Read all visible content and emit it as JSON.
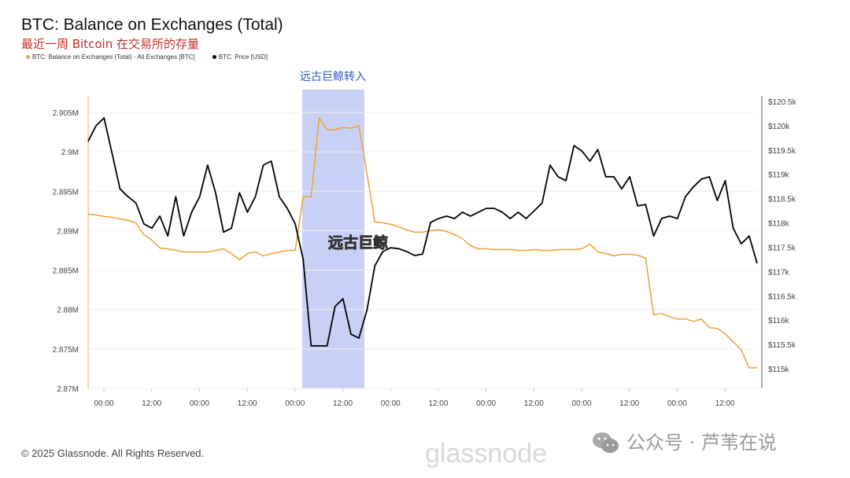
{
  "title": "BTC: Balance on Exchanges (Total)",
  "subtitle": "最近一周 Bitcoin 在交易所的存量",
  "footer": "© 2025 Glassnode. All Rights Reserved.",
  "watermark_wechat": "公众号 · 芦苇在说",
  "watermark_brand": "glassnode",
  "chart_data": {
    "type": "line",
    "title": "BTC: Balance on Exchanges (Total)",
    "sampling": "2h",
    "x_ticks": [
      "00:00",
      "12:00",
      "00:00",
      "12:00",
      "00:00",
      "12:00",
      "00:00",
      "12:00",
      "00:00",
      "12:00",
      "00:00",
      "12:00",
      "00:00",
      "12:00"
    ],
    "y_left": {
      "ticks": [
        "2.905M",
        "2.9M",
        "2.895M",
        "2.89M",
        "2.885M",
        "2.88M",
        "2.875M",
        "2.87M"
      ],
      "range": [
        2.87,
        2.905
      ]
    },
    "y_right": {
      "ticks": [
        "$120.5k",
        "$120k",
        "$119.5k",
        "$119k",
        "$118.5k",
        "$118k",
        "$117.5k",
        "$117k",
        "$116.5k",
        "$116k",
        "$115.5k",
        "$115k"
      ],
      "range": [
        115,
        120.5
      ]
    },
    "grid": true,
    "legend_position": "top-left",
    "highlight": {
      "label": "远古巨鲸转入",
      "inner_label": "远古巨鲸",
      "color": "#c8d1f5"
    },
    "series": [
      {
        "name": "BTC: Balance on Exchanges (Total) - All Exchanges [BTC]",
        "axis": "left",
        "color": "#f0a033",
        "unit": "M",
        "values": [
          2.8921,
          2.892,
          2.8918,
          2.8917,
          2.8915,
          2.8913,
          2.891,
          2.8895,
          2.8888,
          2.8878,
          2.8877,
          2.8875,
          2.8873,
          2.8873,
          2.8873,
          2.8873,
          2.8875,
          2.8877,
          2.8871,
          2.8863,
          2.8871,
          2.8873,
          2.8868,
          2.8871,
          2.8873,
          2.8875,
          2.8875,
          2.8943,
          2.8943,
          2.9043,
          2.9028,
          2.9028,
          2.9031,
          2.903,
          2.9033,
          2.8973,
          2.8911,
          2.891,
          2.8908,
          2.8905,
          2.8901,
          2.8898,
          2.8898,
          2.89,
          2.8901,
          2.8899,
          2.8895,
          2.889,
          2.8881,
          2.8877,
          2.8877,
          2.8876,
          2.8876,
          2.8876,
          2.8875,
          2.8875,
          2.8876,
          2.8875,
          2.8875,
          2.8876,
          2.8876,
          2.8876,
          2.8877,
          2.8883,
          2.8873,
          2.8871,
          2.8868,
          2.887,
          2.887,
          2.8869,
          2.8865,
          2.8793,
          2.8795,
          2.8791,
          2.8788,
          2.8788,
          2.8785,
          2.8788,
          2.8777,
          2.8776,
          2.8769,
          2.8759,
          2.8749,
          2.8726,
          2.8726
        ]
      },
      {
        "name": "BTC: Price [USD]",
        "axis": "right",
        "color": "#000000",
        "unit": "k",
        "values": [
          119.68,
          120.0,
          120.16,
          119.43,
          118.7,
          118.54,
          118.41,
          117.98,
          117.89,
          118.14,
          117.73,
          118.54,
          117.73,
          118.22,
          118.54,
          119.19,
          118.62,
          117.81,
          117.89,
          118.62,
          118.22,
          118.54,
          119.19,
          119.27,
          118.54,
          118.3,
          117.98,
          117.25,
          115.47,
          115.47,
          115.47,
          116.28,
          116.44,
          115.71,
          115.63,
          116.2,
          117.12,
          117.41,
          117.49,
          117.47,
          117.41,
          117.33,
          117.36,
          118.01,
          118.09,
          118.14,
          118.09,
          118.22,
          118.14,
          118.22,
          118.3,
          118.3,
          118.22,
          118.09,
          118.22,
          118.09,
          118.25,
          118.41,
          119.19,
          118.95,
          118.87,
          119.59,
          119.48,
          119.27,
          119.51,
          118.95,
          118.95,
          118.7,
          118.95,
          118.35,
          118.38,
          117.73,
          118.09,
          118.14,
          118.09,
          118.54,
          118.74,
          118.9,
          118.95,
          118.46,
          118.87,
          117.89,
          117.57,
          117.73,
          117.17
        ]
      }
    ]
  }
}
